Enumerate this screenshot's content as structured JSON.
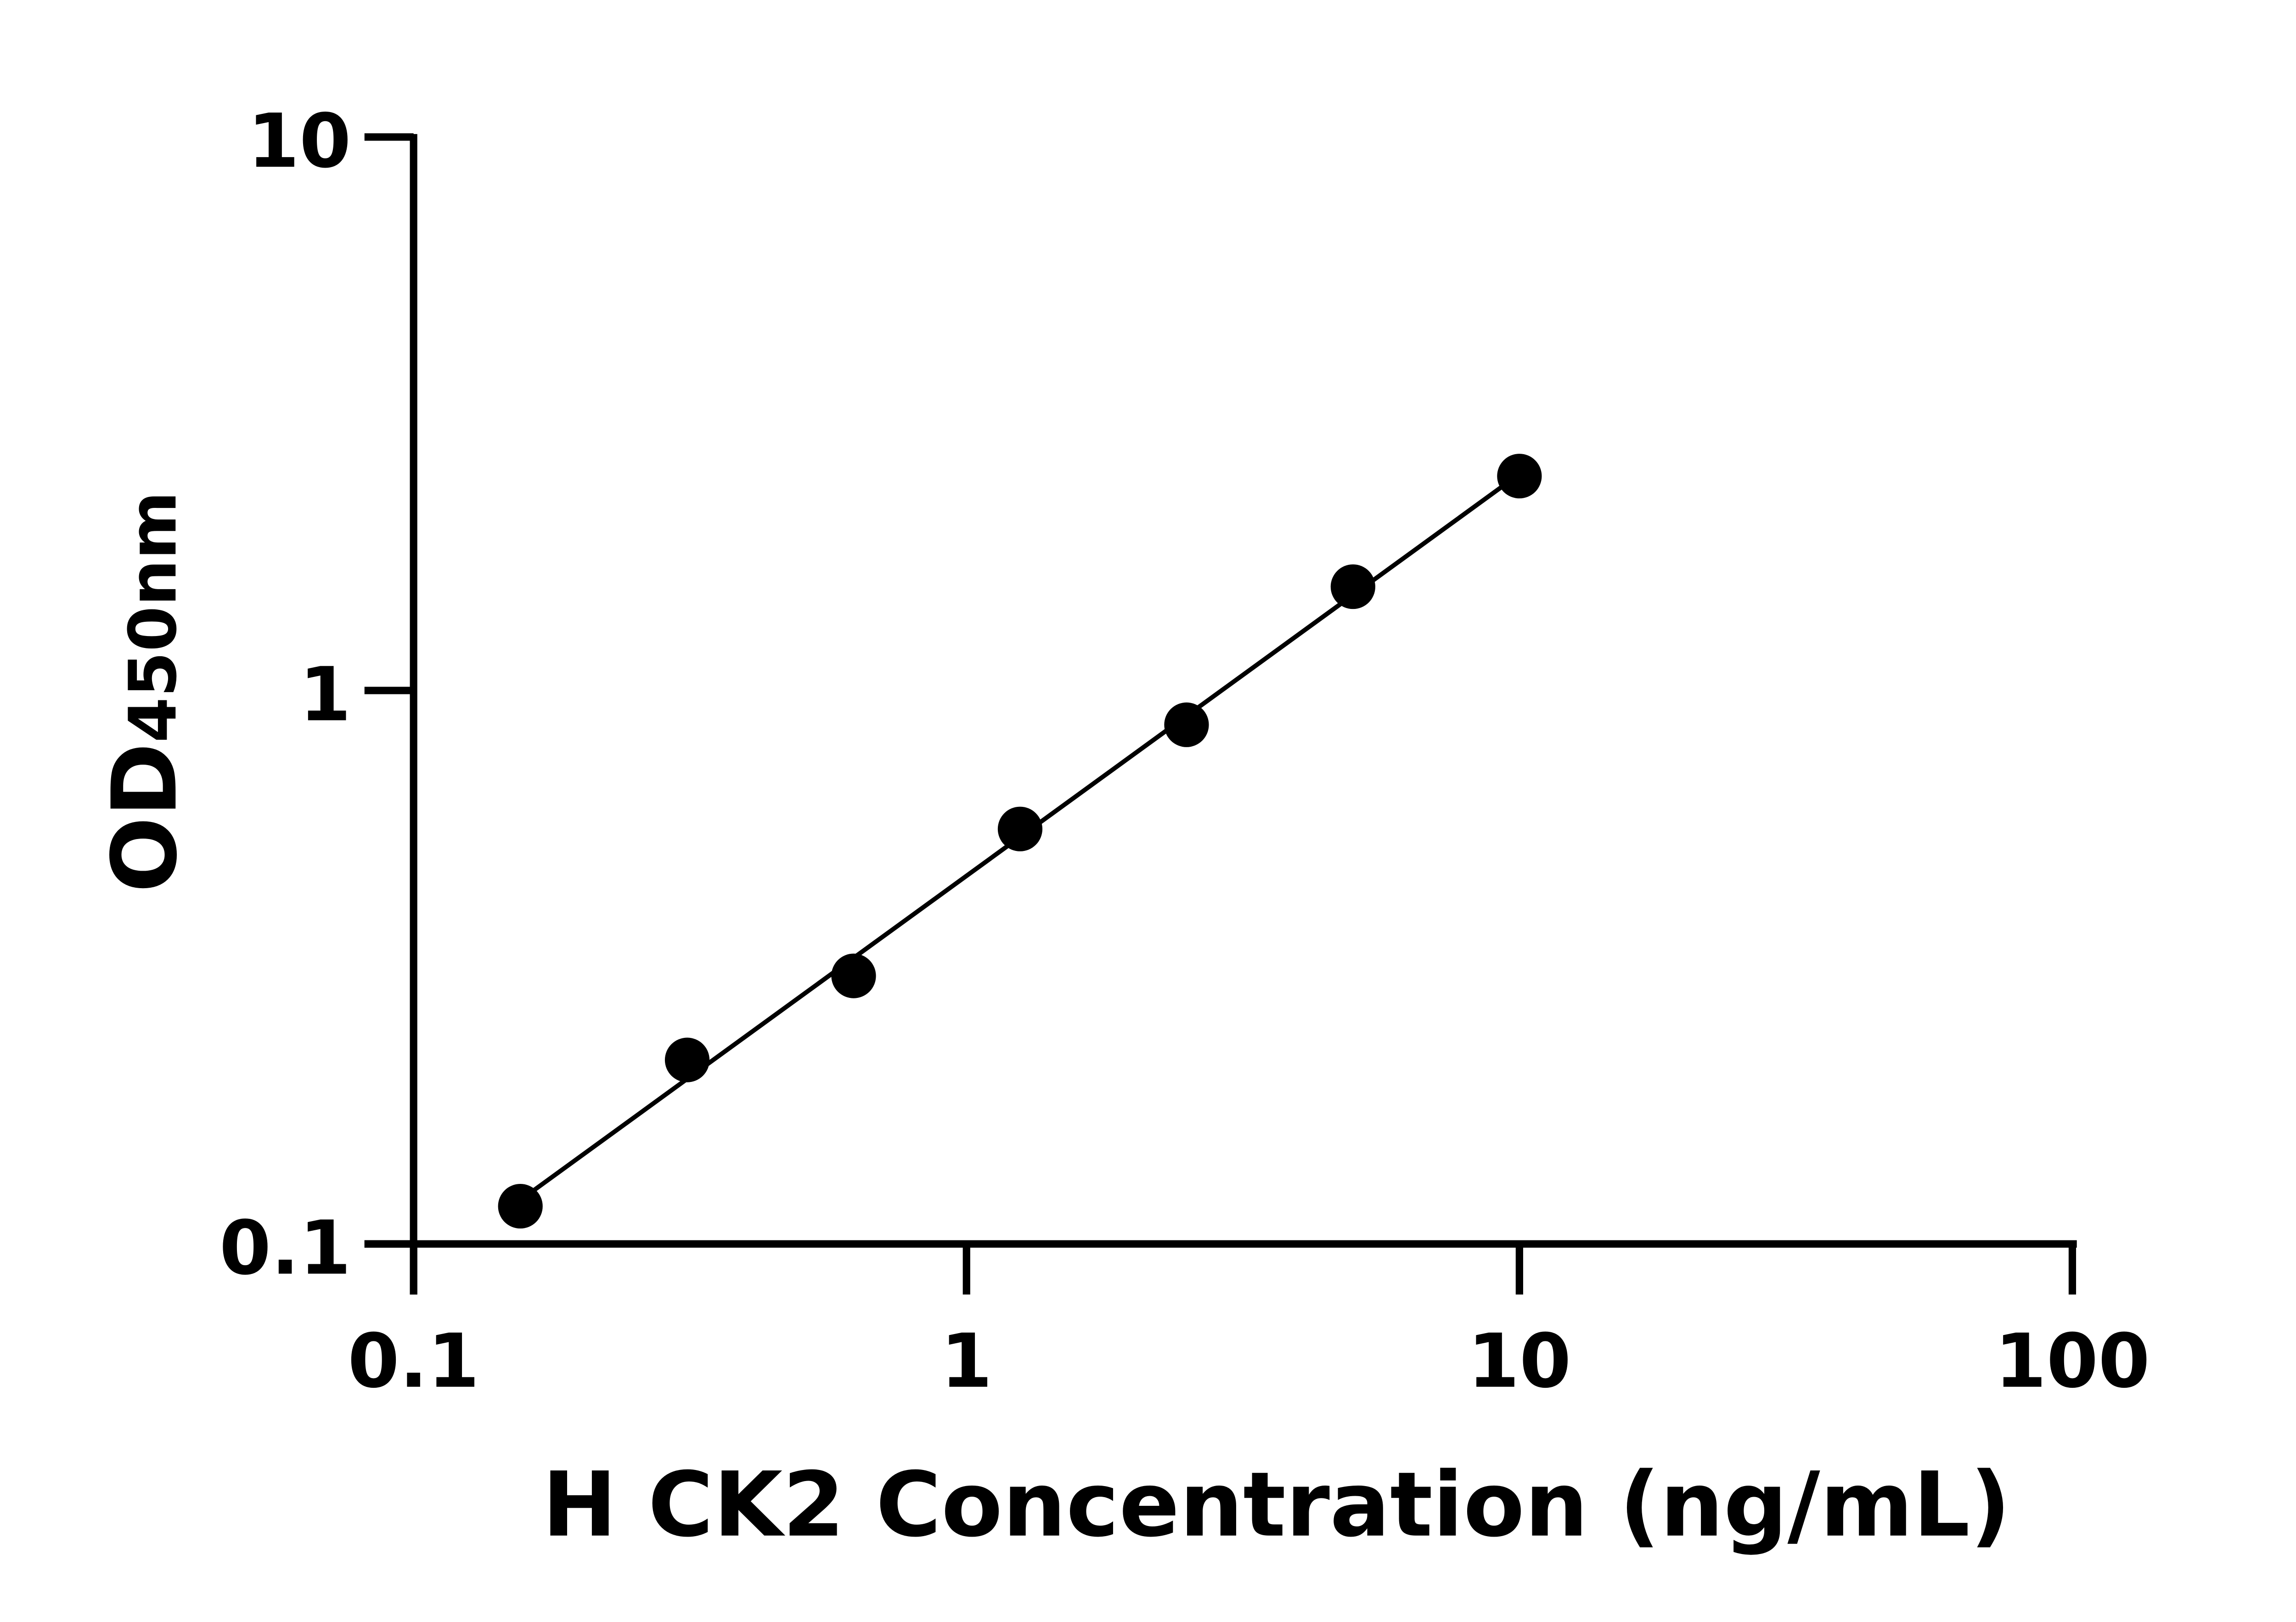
{
  "chart_data": {
    "type": "scatter",
    "title": "",
    "xlabel": "H CK2 Concentration (ng/mL)",
    "ylabel_main": "OD",
    "ylabel_sub": "450",
    "ylabel_unit": "nm",
    "xscale": "log",
    "yscale": "log",
    "xlim": [
      0.1,
      100
    ],
    "ylim": [
      0.1,
      10
    ],
    "xticks": [
      "0.1",
      "1",
      "10",
      "100"
    ],
    "yticks": [
      "0.1",
      "1",
      "10"
    ],
    "grid": false,
    "fit_line": true,
    "marker_color": "#000000",
    "line_color": "#000000",
    "x": [
      0.156,
      0.3125,
      0.625,
      1.25,
      2.5,
      5,
      10
    ],
    "y": [
      0.117,
      0.215,
      0.305,
      0.562,
      0.867,
      1.54,
      2.44
    ]
  }
}
